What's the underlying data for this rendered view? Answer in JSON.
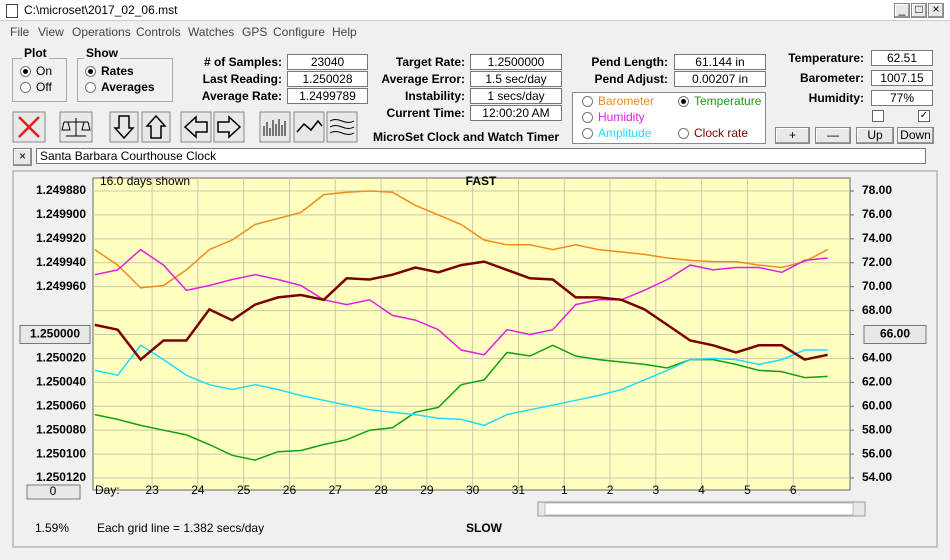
{
  "window": {
    "title": "C:\\microset\\2017_02_06.mst"
  },
  "menu": [
    "File",
    "View",
    "Operations",
    "Controls",
    "Watches",
    "GPS",
    "Configure",
    "Help"
  ],
  "plot_group": {
    "label": "Plot",
    "options": [
      "On",
      "Off"
    ],
    "selected": 0
  },
  "show_group": {
    "label": "Show",
    "options": [
      "Rates",
      "Averages"
    ],
    "selected": 0
  },
  "fields": [
    {
      "label": "# of Samples:",
      "value": "23040"
    },
    {
      "label": "Last Reading:",
      "value": "1.250028"
    },
    {
      "label": "Average Rate:",
      "value": "1.2499789"
    },
    {
      "label": "Target Rate:",
      "value": "1.2500000"
    },
    {
      "label": "Average Error:",
      "value": "1.5 sec/day"
    },
    {
      "label": "Instability:",
      "value": "1 secs/day"
    },
    {
      "label": "Current Time:",
      "value": "12:00:20 AM"
    },
    {
      "label": "Pend Length:",
      "value": "61.144 in"
    },
    {
      "label": "Pend Adjust:",
      "value": "0.00207 in"
    },
    {
      "label": "Temperature:",
      "value": "62.51"
    },
    {
      "label": "Barometer:",
      "value": "1007.15"
    },
    {
      "label": "Humidity:",
      "value": "77%"
    }
  ],
  "app_name": "MicroSet Clock and Watch Timer",
  "buttons": [
    "+",
    "—",
    "Up",
    "Down"
  ],
  "clock_name": "Santa Barbara Courthouse Clock",
  "chart_data": {
    "type": "line",
    "top_label": "FAST",
    "bottom_label": "SLOW",
    "days_shown": "16.0 days shown",
    "x_label": "Day:",
    "grid_note": "Each grid line = 1.382 secs/day",
    "left_note": "1.59%",
    "offset_button": "0",
    "selected_series": 1,
    "grid": true,
    "x": [
      -1.25,
      -0.75,
      -0.25,
      0.25,
      0.75,
      1.25,
      1.75,
      2.25,
      2.75,
      3.25,
      3.75,
      4.25,
      4.75,
      5.25,
      5.75,
      6.25,
      6.75,
      7.25,
      7.75,
      8.25,
      8.75,
      9.25,
      9.75,
      10.25,
      10.75,
      11.25,
      11.75,
      12.25,
      12.75,
      13.25,
      13.75,
      14.25,
      14.75
    ],
    "xlim": [
      -1.29,
      15.24
    ],
    "xticks": [
      {
        "value": 0,
        "label": "23"
      },
      {
        "value": 1,
        "label": "24"
      },
      {
        "value": 2,
        "label": "25"
      },
      {
        "value": 3,
        "label": "26"
      },
      {
        "value": 4,
        "label": "27"
      },
      {
        "value": 5,
        "label": "28"
      },
      {
        "value": 6,
        "label": "29"
      },
      {
        "value": 7,
        "label": "30"
      },
      {
        "value": 8,
        "label": "31"
      },
      {
        "value": 9,
        "label": "1"
      },
      {
        "value": 10,
        "label": "2"
      },
      {
        "value": 11,
        "label": "3"
      },
      {
        "value": 12,
        "label": "4"
      },
      {
        "value": 13,
        "label": "5"
      },
      {
        "value": 14,
        "label": "6"
      }
    ],
    "ylim": [
      1.25012,
      1.24988
    ],
    "yticks": [
      {
        "value": 1.24988,
        "label": "1.249880"
      },
      {
        "value": 1.2499,
        "label": "1.249900"
      },
      {
        "value": 1.24992,
        "label": "1.249920"
      },
      {
        "value": 1.24994,
        "label": "1.249940"
      },
      {
        "value": 1.24996,
        "label": "1.249960"
      },
      {
        "value": 1.24998,
        "label": null
      },
      {
        "value": 1.25,
        "label": "1.250000"
      },
      {
        "value": 1.25002,
        "label": "1.250020"
      },
      {
        "value": 1.25004,
        "label": "1.250040"
      },
      {
        "value": 1.25006,
        "label": "1.250060"
      },
      {
        "value": 1.25008,
        "label": "1.250080"
      },
      {
        "value": 1.2501,
        "label": "1.250100"
      },
      {
        "value": 1.25012,
        "label": "1.250120"
      }
    ],
    "y2lim": [
      54,
      78
    ],
    "y2ticks": [
      {
        "value": 78,
        "label": "78.00"
      },
      {
        "value": 76,
        "label": "76.00"
      },
      {
        "value": 74,
        "label": "74.00"
      },
      {
        "value": 72,
        "label": "72.00"
      },
      {
        "value": 70,
        "label": "70.00"
      },
      {
        "value": 68,
        "label": "68.00"
      },
      {
        "value": 66,
        "label": "66.00"
      },
      {
        "value": 64,
        "label": "64.00"
      },
      {
        "value": 62,
        "label": "62.00"
      },
      {
        "value": 60,
        "label": "60.00"
      },
      {
        "value": 58,
        "label": "58.00"
      },
      {
        "value": 56,
        "label": "56.00"
      },
      {
        "value": 54,
        "label": "54.00"
      }
    ],
    "series": [
      {
        "name": "Barometer",
        "color": "#f08c1c",
        "axis": "y2",
        "values": [
          73.1,
          71.8,
          69.9,
          70.1,
          71.4,
          73.1,
          73.9,
          75.2,
          75.7,
          76.2,
          77.7,
          77.9,
          78.0,
          77.9,
          76.8,
          76.0,
          75.2,
          73.9,
          73.5,
          73.5,
          73.1,
          73.5,
          73.1,
          72.9,
          72.7,
          72.4,
          72.2,
          72.1,
          72.1,
          71.8,
          71.6,
          72.1,
          73.1
        ]
      },
      {
        "name": "Temperature",
        "color": "#10a010",
        "axis": "y2",
        "values": [
          59.3,
          58.9,
          58.4,
          58.0,
          57.6,
          56.8,
          55.9,
          55.5,
          56.2,
          56.3,
          56.8,
          57.2,
          58.0,
          58.2,
          59.5,
          59.9,
          61.8,
          62.2,
          64.5,
          64.2,
          65.1,
          64.2,
          63.9,
          63.7,
          63.5,
          63.2,
          63.9,
          63.9,
          63.5,
          63.0,
          62.9,
          62.4,
          62.5
        ]
      },
      {
        "name": "Humidity",
        "color": "#e020e0",
        "axis": "y2",
        "values": [
          71.0,
          71.4,
          73.1,
          71.8,
          69.7,
          70.1,
          70.6,
          71.0,
          70.6,
          70.1,
          68.9,
          68.5,
          68.9,
          67.6,
          67.2,
          66.4,
          64.7,
          64.3,
          66.4,
          66.0,
          66.4,
          68.5,
          68.9,
          68.9,
          69.7,
          70.6,
          71.8,
          71.4,
          71.6,
          71.6,
          71.2,
          72.2,
          72.4
        ]
      },
      {
        "name": "Amplitude",
        "color": "#20dcff",
        "axis": "y2",
        "values": [
          63.0,
          62.6,
          65.1,
          63.9,
          62.6,
          61.8,
          61.4,
          61.8,
          61.4,
          60.9,
          60.5,
          60.1,
          59.7,
          59.5,
          59.3,
          59.0,
          58.9,
          58.4,
          59.3,
          59.7,
          60.1,
          60.5,
          60.9,
          61.4,
          62.2,
          63.0,
          63.9,
          64.0,
          63.9,
          63.5,
          63.9,
          64.7,
          64.7
        ]
      },
      {
        "name": "Clock rate",
        "color": "#7a0000",
        "axis": "y",
        "values": [
          1.249992,
          1.249996,
          1.250021,
          1.250005,
          1.250005,
          1.249979,
          1.249988,
          1.249975,
          1.249969,
          1.249967,
          1.249971,
          1.249953,
          1.249954,
          1.24995,
          1.249944,
          1.249948,
          1.249942,
          1.249939,
          1.249946,
          1.249953,
          1.249954,
          1.249969,
          1.249969,
          1.249971,
          1.249979,
          1.249992,
          1.250005,
          1.250009,
          1.250015,
          1.250009,
          1.250009,
          1.250021,
          1.250017
        ]
      }
    ]
  }
}
